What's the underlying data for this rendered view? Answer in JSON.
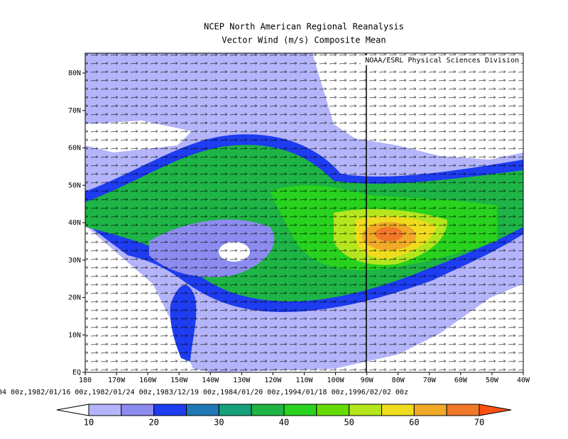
{
  "title": [
    "NCEP North American Regional Reanalysis",
    "Vector Wind (m/s) Composite Mean"
  ],
  "credit": "NOAA/ESRL Physical Sciences Division",
  "map": {
    "lat_labels": [
      "EQ",
      "10N",
      "20N",
      "30N",
      "40N",
      "50N",
      "60N",
      "70N",
      "80N"
    ],
    "lon_labels": [
      "180",
      "170W",
      "160W",
      "150W",
      "140W",
      "130W",
      "120W",
      "110W",
      "100W",
      "90W",
      "80W",
      "70W",
      "60W",
      "50W",
      "40W"
    ]
  },
  "dates": "04 00z,1982/01/16 00z,1982/01/24 00z,1983/12/19 00z,1984/01/20 00z,1994/01/18 00z,1996/02/02 00z",
  "colorbar": {
    "colors": [
      "#ffffff",
      "#b4b4fa",
      "#8c8cf0",
      "#1e3cf0",
      "#1e78b4",
      "#14a078",
      "#1eb446",
      "#28d21e",
      "#64dc00",
      "#b4e61e",
      "#f0dc1e",
      "#f0aa28",
      "#f07828",
      "#ff5014"
    ],
    "labels": [
      10,
      20,
      30,
      40,
      50,
      60,
      70
    ]
  }
}
